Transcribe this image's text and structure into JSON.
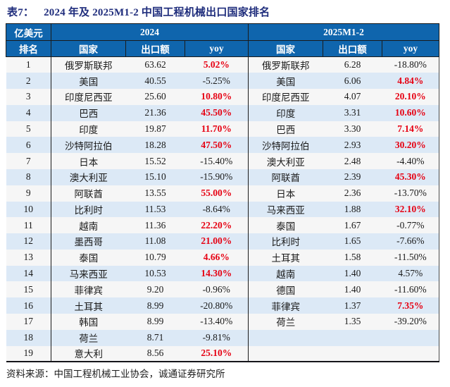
{
  "title": {
    "prefix": "表7：",
    "text": "2024 年及 2025M1-2 中国工程机械出口国家排名"
  },
  "table": {
    "unit_label": "亿美元",
    "rank_label": "排名",
    "group_2024": "2024",
    "group_2025": "2025M1-2",
    "col_country": "国家",
    "col_export": "出口额",
    "col_yoy": "yoy",
    "rows": [
      {
        "rank": "1",
        "c24": "俄罗斯联邦",
        "v24": "63.62",
        "y24": "5.02%",
        "r24": true,
        "c25": "俄罗斯联邦",
        "v25": "6.28",
        "y25": "-18.80%",
        "r25": false
      },
      {
        "rank": "2",
        "c24": "美国",
        "v24": "40.55",
        "y24": "-5.25%",
        "r24": false,
        "c25": "美国",
        "v25": "6.06",
        "y25": "4.84%",
        "r25": true
      },
      {
        "rank": "3",
        "c24": "印度尼西亚",
        "v24": "25.60",
        "y24": "10.80%",
        "r24": true,
        "c25": "印度尼西亚",
        "v25": "4.07",
        "y25": "20.10%",
        "r25": true
      },
      {
        "rank": "4",
        "c24": "巴西",
        "v24": "21.36",
        "y24": "45.50%",
        "r24": true,
        "c25": "印度",
        "v25": "3.31",
        "y25": "10.60%",
        "r25": true
      },
      {
        "rank": "5",
        "c24": "印度",
        "v24": "19.87",
        "y24": "11.70%",
        "r24": true,
        "c25": "巴西",
        "v25": "3.30",
        "y25": "7.14%",
        "r25": true
      },
      {
        "rank": "6",
        "c24": "沙特阿拉伯",
        "v24": "18.28",
        "y24": "47.50%",
        "r24": true,
        "c25": "沙特阿拉伯",
        "v25": "2.93",
        "y25": "30.20%",
        "r25": true
      },
      {
        "rank": "7",
        "c24": "日本",
        "v24": "15.52",
        "y24": "-15.40%",
        "r24": false,
        "c25": "澳大利亚",
        "v25": "2.48",
        "y25": "-4.40%",
        "r25": false
      },
      {
        "rank": "8",
        "c24": "澳大利亚",
        "v24": "15.10",
        "y24": "-15.90%",
        "r24": false,
        "c25": "阿联酋",
        "v25": "2.39",
        "y25": "45.30%",
        "r25": true
      },
      {
        "rank": "9",
        "c24": "阿联酋",
        "v24": "13.55",
        "y24": "55.00%",
        "r24": true,
        "c25": "日本",
        "v25": "2.36",
        "y25": "-13.70%",
        "r25": false
      },
      {
        "rank": "10",
        "c24": "比利时",
        "v24": "11.53",
        "y24": "-8.64%",
        "r24": false,
        "c25": "马来西亚",
        "v25": "1.88",
        "y25": "32.10%",
        "r25": true
      },
      {
        "rank": "11",
        "c24": "越南",
        "v24": "11.36",
        "y24": "22.20%",
        "r24": true,
        "c25": "泰国",
        "v25": "1.67",
        "y25": "-0.77%",
        "r25": false
      },
      {
        "rank": "12",
        "c24": "墨西哥",
        "v24": "11.08",
        "y24": "21.00%",
        "r24": true,
        "c25": "比利时",
        "v25": "1.65",
        "y25": "-7.66%",
        "r25": false
      },
      {
        "rank": "13",
        "c24": "泰国",
        "v24": "10.79",
        "y24": "4.66%",
        "r24": true,
        "c25": "土耳其",
        "v25": "1.58",
        "y25": "-11.50%",
        "r25": false
      },
      {
        "rank": "14",
        "c24": "马来西亚",
        "v24": "10.53",
        "y24": "14.30%",
        "r24": true,
        "c25": "越南",
        "v25": "1.40",
        "y25": "4.57%",
        "r25": false
      },
      {
        "rank": "15",
        "c24": "菲律宾",
        "v24": "9.20",
        "y24": "-0.96%",
        "r24": false,
        "c25": "德国",
        "v25": "1.40",
        "y25": "-11.60%",
        "r25": false
      },
      {
        "rank": "16",
        "c24": "土耳其",
        "v24": "8.99",
        "y24": "-20.80%",
        "r24": false,
        "c25": "菲律宾",
        "v25": "1.37",
        "y25": "7.35%",
        "r25": true
      },
      {
        "rank": "17",
        "c24": "韩国",
        "v24": "8.99",
        "y24": "-13.40%",
        "r24": false,
        "c25": "荷兰",
        "v25": "1.35",
        "y25": "-39.20%",
        "r25": false
      },
      {
        "rank": "18",
        "c24": "荷兰",
        "v24": "8.71",
        "y24": "-9.81%",
        "r24": false,
        "c25": "",
        "v25": "",
        "y25": "",
        "r25": false
      },
      {
        "rank": "19",
        "c24": "意大利",
        "v24": "8.56",
        "y24": "25.10%",
        "r24": true,
        "c25": "",
        "v25": "",
        "y25": "",
        "r25": false
      }
    ]
  },
  "source": "资料来源：中国工程机械工业协会，诚通证券研究所",
  "colors": {
    "header_bg": "#0F65AD",
    "stripe_bg": "#DCE9F6",
    "plain_bg": "#F6F6F6",
    "highlight": "#E60012",
    "title_color": "#1F2D7C",
    "line": "#1B1B1B"
  }
}
